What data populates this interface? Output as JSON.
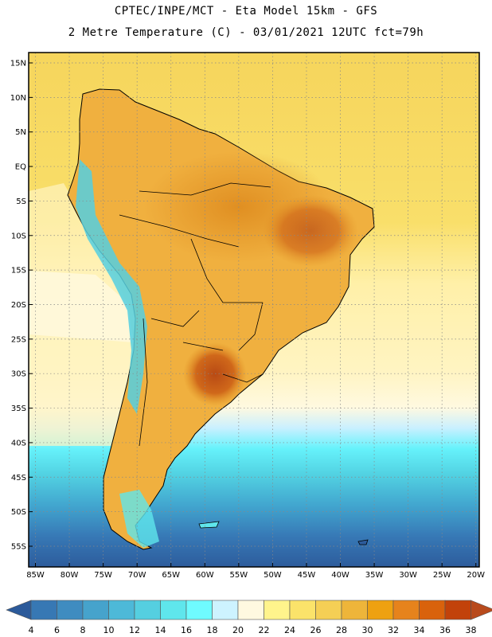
{
  "header": {
    "line1": "CPTEC/INPE/MCT -  Eta Model 15km - GFS",
    "line2": "2 Metre Temperature (C) - 03/01/2021 12UTC fct=79h"
  },
  "map": {
    "region": "South America",
    "variable": "2 Metre Temperature",
    "units": "C",
    "lat_labels": [
      "15N",
      "10N",
      "5N",
      "EQ",
      "5S",
      "10S",
      "15S",
      "20S",
      "25S",
      "30S",
      "35S",
      "40S",
      "45S",
      "50S",
      "55S"
    ],
    "lon_labels": [
      "85W",
      "80W",
      "75W",
      "70W",
      "65W",
      "60W",
      "55W",
      "50W",
      "45W",
      "40W",
      "35W",
      "30W",
      "25W",
      "20W"
    ],
    "lat_values": [
      15,
      10,
      5,
      0,
      -5,
      -10,
      -15,
      -20,
      -25,
      -30,
      -35,
      -40,
      -45,
      -50,
      -55
    ],
    "lon_values": [
      -85,
      -80,
      -75,
      -70,
      -65,
      -60,
      -55,
      -50,
      -45,
      -40,
      -35,
      -30,
      -25,
      -20
    ],
    "lat_range": [
      -58,
      16.5
    ],
    "lon_range": [
      -86,
      -19.5
    ]
  },
  "colorbar": {
    "labels": [
      "4",
      "6",
      "8",
      "10",
      "12",
      "14",
      "16",
      "18",
      "20",
      "22",
      "24",
      "26",
      "28",
      "30",
      "32",
      "34",
      "36",
      "38"
    ],
    "colors": [
      "#2c5a9a",
      "#3778b4",
      "#3f8cc0",
      "#46a3cc",
      "#4db9d8",
      "#55cfe0",
      "#5fe6ec",
      "#6ffbff",
      "#cdf3ff",
      "#fff9e0",
      "#fff48c",
      "#fbe36a",
      "#f5cf55",
      "#eeb53a",
      "#eea111",
      "#e6831c",
      "#d9620c",
      "#c2420a",
      "#b84a1c"
    ]
  }
}
